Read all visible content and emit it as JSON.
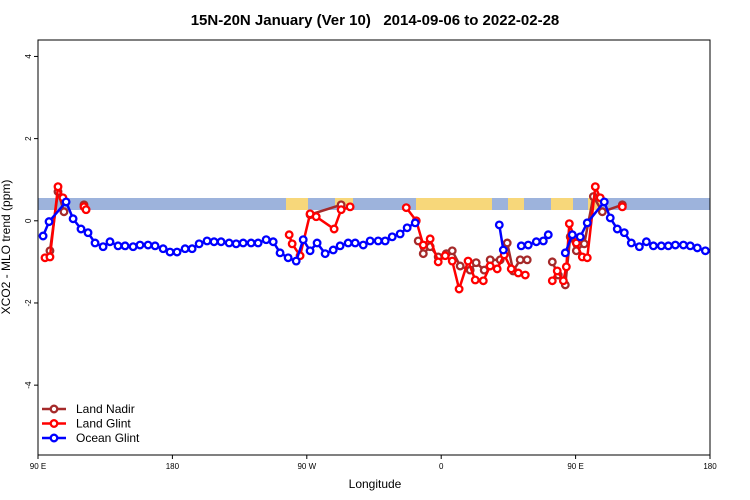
{
  "chart_data": {
    "type": "line",
    "title": "15N-20N January (Ver 10)   2014-09-06 to 2022-02-28",
    "x_label": "Longitude",
    "y_label": "XCO2 - MLO trend (ppm)",
    "xlim": [
      90,
      540
    ],
    "xticks": [
      {
        "value": 90,
        "label": "90 E"
      },
      {
        "value": 180,
        "label": "180"
      },
      {
        "value": 270,
        "label": "90 W"
      },
      {
        "value": 360,
        "label": "0"
      },
      {
        "value": 450,
        "label": "90 E"
      },
      {
        "value": 540,
        "label": "180"
      }
    ],
    "ylim": [
      -5.7,
      4.4
    ],
    "yticks": [
      -4,
      -2,
      0,
      2,
      4
    ],
    "legend": "bottom-left",
    "series": [
      {
        "name": "Land Nadir",
        "color": "#a52a2a",
        "x": [
          98,
          103.4,
          107.4,
          null,
          120.8,
          null,
          272.2,
          293,
          null,
          344.6,
          348,
          352.6,
          358,
          363.4,
          367.4,
          372.7,
          379.4,
          383.4,
          388.8,
          392.8,
          399.5,
          404.2,
          408.2,
          412.9,
          417.6,
          null,
          434.4,
          438.4,
          443.1,
          446.4,
          450.5,
          455.8,
          461.9,
          467.9,
          481.3
        ],
        "values": [
          -0.73,
          0.71,
          0.22,
          null,
          0.39,
          null,
          0.15,
          0.39,
          null,
          -0.49,
          -0.8,
          -0.63,
          -0.88,
          -0.8,
          -0.73,
          -1.1,
          -1.2,
          -1.02,
          -1.2,
          -0.95,
          -0.95,
          -0.54,
          -1.22,
          -0.95,
          -0.95,
          null,
          -1.0,
          -1.32,
          -1.56,
          -0.39,
          -0.73,
          -0.56,
          0.59,
          0.22,
          0.39
        ]
      },
      {
        "name": "Land Glint",
        "color": "#ff0000",
        "x": [
          94.7,
          98,
          103.4,
          106.7,
          null,
          120.8,
          122.2,
          null,
          258.2,
          260.2,
          265.5,
          272.2,
          276.3,
          288.3,
          293,
          299,
          null,
          336.6,
          343.3,
          348,
          352.6,
          358,
          362.7,
          367.4,
          372,
          378,
          382.8,
          388.2,
          392.8,
          397.5,
          402.2,
          406.9,
          411.6,
          416.3,
          null,
          434.4,
          437.7,
          441.8,
          443.8,
          445.8,
          450.5,
          454.5,
          457.8,
          463.2,
          466.5,
          null,
          481.3
        ],
        "values": [
          -0.9,
          -0.88,
          0.83,
          0.56,
          null,
          0.34,
          0.27,
          null,
          -0.34,
          -0.56,
          -0.85,
          0.17,
          0.1,
          -0.2,
          0.27,
          0.34,
          null,
          0.32,
          0.0,
          -0.59,
          -0.44,
          -1.0,
          -0.85,
          -0.98,
          -1.66,
          -0.98,
          -1.44,
          -1.46,
          -1.1,
          -1.17,
          -0.83,
          -1.17,
          -1.27,
          -1.32,
          null,
          -1.46,
          -1.22,
          -1.46,
          -1.12,
          -0.07,
          -0.54,
          -0.88,
          -0.9,
          0.83,
          0.56,
          null,
          0.34
        ]
      },
      {
        "name": "Ocean Glint",
        "color": "#0000ff",
        "x": [
          93.4,
          97.4,
          108.8,
          113.5,
          118.8,
          123.5,
          128.2,
          133.6,
          138.2,
          143.6,
          148.3,
          153.7,
          158.3,
          163.7,
          168.4,
          173.8,
          178.4,
          183.1,
          188.5,
          193.2,
          197.9,
          203.2,
          207.9,
          212.6,
          218,
          222.7,
          227.4,
          232.7,
          237.4,
          242.8,
          247.5,
          252.1,
          257.5,
          262.9,
          267.6,
          272.2,
          276.9,
          282.3,
          287.7,
          292.3,
          297.7,
          302.4,
          307.8,
          312.4,
          317.8,
          322.5,
          327.2,
          332.5,
          337.2,
          342.6,
          null,
          398.9,
          401.6,
          null,
          413.6,
          418.3,
          423.7,
          428.4,
          431.7,
          null,
          443.1,
          447.8,
          453.1,
          457.8,
          469.2,
          473.2,
          477.9,
          482.6,
          487.3,
          492.7,
          497.4,
          502.1,
          507.4,
          512.1,
          516.8,
          522.2,
          526.8,
          531.5,
          536.9
        ],
        "values": [
          -0.37,
          -0.02,
          0.46,
          0.05,
          -0.2,
          -0.29,
          -0.54,
          -0.63,
          -0.51,
          -0.61,
          -0.61,
          -0.63,
          -0.59,
          -0.59,
          -0.61,
          -0.68,
          -0.76,
          -0.76,
          -0.68,
          -0.68,
          -0.56,
          -0.49,
          -0.51,
          -0.51,
          -0.54,
          -0.56,
          -0.54,
          -0.54,
          -0.54,
          -0.46,
          -0.51,
          -0.78,
          -0.9,
          -0.98,
          -0.46,
          -0.73,
          -0.54,
          -0.8,
          -0.71,
          -0.61,
          -0.54,
          -0.54,
          -0.59,
          -0.49,
          -0.49,
          -0.49,
          -0.39,
          -0.32,
          -0.17,
          -0.05,
          null,
          -0.1,
          -0.71,
          null,
          -0.61,
          -0.59,
          -0.51,
          -0.49,
          -0.34,
          null,
          -0.78,
          -0.34,
          -0.39,
          -0.05,
          0.46,
          0.07,
          -0.2,
          -0.29,
          -0.54,
          -0.63,
          -0.51,
          -0.61,
          -0.61,
          -0.61,
          -0.59,
          -0.59,
          -0.61,
          -0.66,
          -0.73
        ]
      }
    ]
  }
}
